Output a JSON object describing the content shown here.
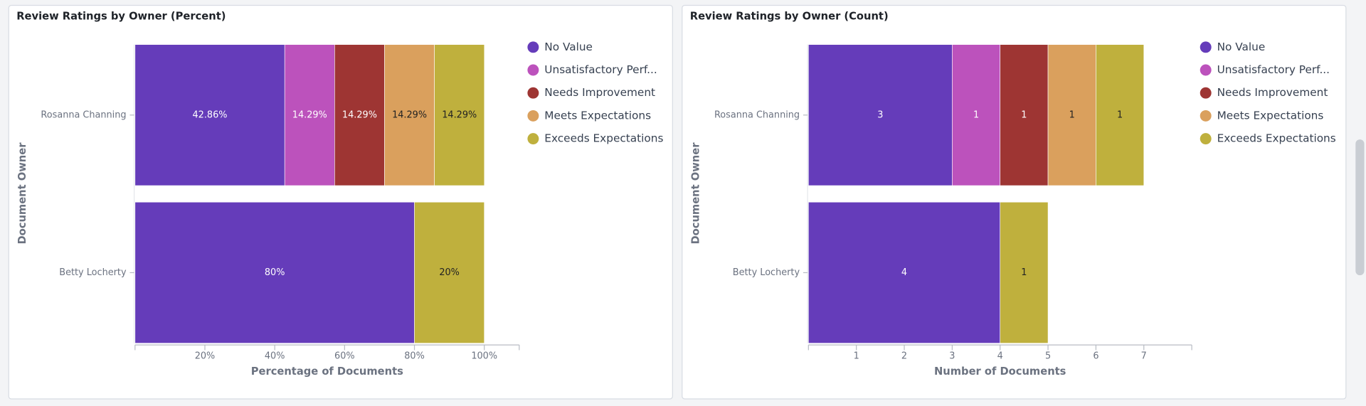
{
  "chart_data": [
    {
      "type": "bar",
      "orientation": "horizontal",
      "stacked": true,
      "title": "Review Ratings by Owner (Percent)",
      "x_label": "Percentage of Documents",
      "y_label": "Document Owner",
      "categories": [
        "Rosanna Channing",
        "Betty Locherty"
      ],
      "series": [
        {
          "name": "No Value",
          "color": "#653cba",
          "values": [
            42.86,
            80
          ],
          "value_labels": [
            "42.86%",
            "80%"
          ]
        },
        {
          "name": "Unsatisfactory Perf...",
          "color": "#bc52bc",
          "values": [
            14.29,
            null
          ],
          "value_labels": [
            "14.29%",
            null
          ]
        },
        {
          "name": "Needs Improvement",
          "color": "#9e3533",
          "values": [
            14.29,
            null
          ],
          "value_labels": [
            "14.29%",
            null
          ]
        },
        {
          "name": "Meets Expectations",
          "color": "#daa05d",
          "values": [
            14.29,
            null
          ],
          "value_labels": [
            "14.29%",
            null
          ]
        },
        {
          "name": "Exceeds Expectations",
          "color": "#bfb03d",
          "values": [
            14.29,
            20
          ],
          "value_labels": [
            "14.29%",
            "20%"
          ]
        }
      ],
      "xlim": [
        0,
        110
      ],
      "xticks": [
        {
          "value": 20,
          "label": "20%"
        },
        {
          "value": 40,
          "label": "40%"
        },
        {
          "value": 60,
          "label": "60%"
        },
        {
          "value": 80,
          "label": "80%"
        },
        {
          "value": 100,
          "label": "100%"
        }
      ],
      "legend": "right"
    },
    {
      "type": "bar",
      "orientation": "horizontal",
      "stacked": true,
      "title": "Review Ratings by Owner (Count)",
      "x_label": "Number of Documents",
      "y_label": "Document Owner",
      "categories": [
        "Rosanna Channing",
        "Betty Locherty"
      ],
      "series": [
        {
          "name": "No Value",
          "color": "#653cba",
          "values": [
            3,
            4
          ]
        },
        {
          "name": "Unsatisfactory Perf...",
          "color": "#bc52bc",
          "values": [
            1,
            null
          ]
        },
        {
          "name": "Needs Improvement",
          "color": "#9e3533",
          "values": [
            1,
            null
          ]
        },
        {
          "name": "Meets Expectations",
          "color": "#daa05d",
          "values": [
            1,
            null
          ]
        },
        {
          "name": "Exceeds Expectations",
          "color": "#bfb03d",
          "values": [
            1,
            1
          ]
        }
      ],
      "xlim": [
        0,
        8
      ],
      "xticks": [
        1,
        2,
        3,
        4,
        5,
        6,
        7
      ],
      "legend": "right"
    }
  ]
}
